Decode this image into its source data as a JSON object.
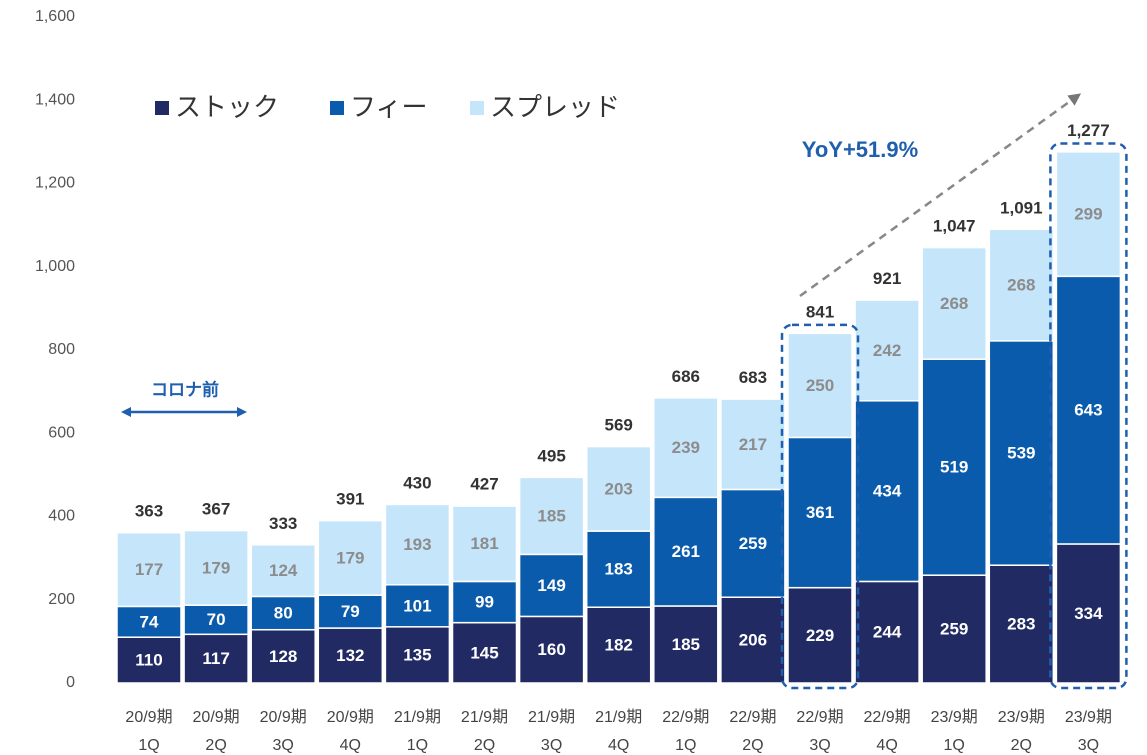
{
  "chart_data": {
    "type": "stacked_bar",
    "categories": [
      [
        "20/9期",
        "1Q"
      ],
      [
        "20/9期",
        "2Q"
      ],
      [
        "20/9期",
        "3Q"
      ],
      [
        "20/9期",
        "4Q"
      ],
      [
        "21/9期",
        "1Q"
      ],
      [
        "21/9期",
        "2Q"
      ],
      [
        "21/9期",
        "3Q"
      ],
      [
        "21/9期",
        "4Q"
      ],
      [
        "22/9期",
        "1Q"
      ],
      [
        "22/9期",
        "2Q"
      ],
      [
        "22/9期",
        "3Q"
      ],
      [
        "22/9期",
        "4Q"
      ],
      [
        "23/9期",
        "1Q"
      ],
      [
        "23/9期",
        "2Q"
      ],
      [
        "23/9期",
        "3Q"
      ]
    ],
    "series": [
      {
        "name": "ストック",
        "color": "#222a64",
        "label_color": "#ffffff",
        "values": [
          110,
          117,
          128,
          132,
          135,
          145,
          160,
          182,
          185,
          206,
          229,
          244,
          259,
          283,
          334
        ]
      },
      {
        "name": "フィー",
        "color": "#0a5bab",
        "label_color": "#ffffff",
        "values": [
          74,
          70,
          80,
          79,
          101,
          99,
          149,
          183,
          261,
          259,
          361,
          434,
          519,
          539,
          643
        ]
      },
      {
        "name": "スプレッド",
        "color": "#c5e6fa",
        "label_color": "#8c8c8c",
        "values": [
          177,
          179,
          124,
          179,
          193,
          181,
          185,
          203,
          239,
          217,
          250,
          242,
          268,
          268,
          299
        ]
      }
    ],
    "totals": {
      "values": [
        363,
        367,
        333,
        391,
        430,
        427,
        495,
        569,
        686,
        683,
        841,
        921,
        1047,
        1091,
        1277
      ],
      "value_labels": [
        "363",
        "367",
        "333",
        "391",
        "430",
        "427",
        "495",
        "569",
        "686",
        "683",
        "841",
        "921",
        "1,047",
        "1,091",
        "1,277"
      ]
    },
    "ylim": [
      0,
      1600
    ],
    "yticks": [
      0,
      200,
      400,
      600,
      800,
      {
        "value": 1000,
        "label": "1,000"
      },
      {
        "value": 1200,
        "label": "1,200"
      },
      {
        "value": 1400,
        "label": "1,400"
      },
      {
        "value": 1600,
        "label": "1,600"
      }
    ],
    "legend": "top-left",
    "annotations": [
      "YoY+51.9%",
      "コロナ前"
    ]
  }
}
